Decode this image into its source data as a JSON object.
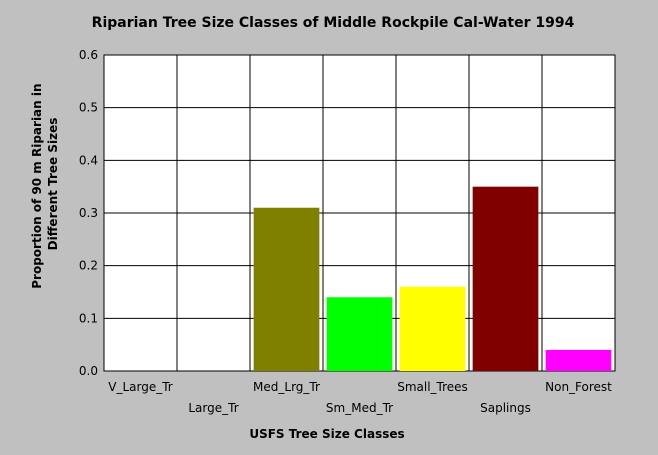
{
  "chart_data": {
    "type": "bar",
    "title": "Riparian Tree Size Classes of Middle Rockpile Cal-Water 1994",
    "xlabel": "USFS Tree Size Classes",
    "ylabel_lines": [
      "Proportion of 90 m Riparian in",
      "Different Tree Sizes"
    ],
    "categories": [
      "V_Large_Tr",
      "Large_Tr",
      "Med_Lrg_Tr",
      "Sm_Med_Tr",
      "Small_Trees",
      "Saplings",
      "Non_Forest"
    ],
    "values": [
      0,
      0,
      0.31,
      0.14,
      0.16,
      0.35,
      0.04
    ],
    "colors": [
      "#000000",
      "#000000",
      "#808000",
      "#00ff00",
      "#ffff00",
      "#800000",
      "#ff00ff"
    ],
    "yticks": [
      "0.0",
      "0.1",
      "0.2",
      "0.3",
      "0.4",
      "0.5",
      "0.6"
    ],
    "ylim": [
      0,
      0.6
    ],
    "grid": true,
    "background": "#c0c0c0",
    "plot_background": "#ffffff"
  }
}
